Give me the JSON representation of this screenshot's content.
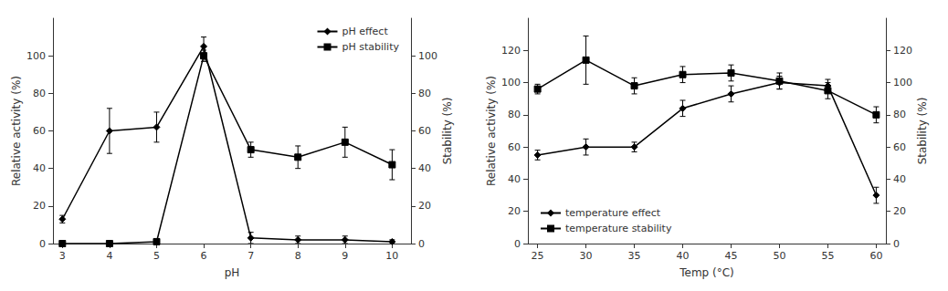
{
  "chart_data": [
    {
      "type": "line",
      "x": [
        3,
        4,
        5,
        6,
        7,
        8,
        9,
        10
      ],
      "xlabel": "pH",
      "ylabel": "Relative activity (%)",
      "y2label": "Stability (%)",
      "xlim": [
        2.8,
        10.4
      ],
      "xticks": [
        3,
        4,
        5,
        6,
        7,
        8,
        9,
        10
      ],
      "ylim": [
        0,
        120
      ],
      "yticks": [
        0,
        20,
        40,
        60,
        80,
        100
      ],
      "y2lim": [
        0,
        120
      ],
      "y2ticks": [
        0,
        20,
        40,
        60,
        80,
        100
      ],
      "grid": false,
      "legend": "upper right",
      "series": [
        {
          "name": "pH effect",
          "color": "#000000",
          "marker": "diamond",
          "values": [
            13,
            60,
            62,
            105,
            3,
            2,
            2,
            1
          ],
          "errors": [
            2,
            12,
            8,
            5,
            3,
            2,
            2,
            1
          ]
        },
        {
          "name": "pH stability",
          "color": "#000000",
          "marker": "square",
          "axis": "y2",
          "values": [
            0,
            0,
            1,
            100,
            50,
            46,
            54,
            42
          ],
          "errors": [
            0,
            0,
            1,
            3,
            4,
            6,
            8,
            8
          ]
        }
      ]
    },
    {
      "type": "line",
      "x": [
        25,
        30,
        35,
        40,
        45,
        50,
        55,
        60
      ],
      "xlabel": "Temp (°C)",
      "ylabel": "Relative activity (%)",
      "y2label": "Stability (%)",
      "xlim": [
        24,
        61
      ],
      "xticks": [
        25,
        30,
        35,
        40,
        45,
        50,
        55,
        60
      ],
      "ylim": [
        0,
        140
      ],
      "yticks": [
        0,
        20,
        40,
        60,
        80,
        100,
        120
      ],
      "y2lim": [
        0,
        140
      ],
      "y2ticks": [
        0,
        20,
        40,
        60,
        80,
        100,
        120
      ],
      "grid": false,
      "legend": "lower left",
      "series": [
        {
          "name": "temperature effect",
          "color": "#000000",
          "marker": "diamond",
          "values": [
            55,
            60,
            60,
            84,
            93,
            100,
            98,
            30
          ],
          "errors": [
            3,
            5,
            3,
            5,
            5,
            4,
            4,
            5
          ]
        },
        {
          "name": "temperature stability",
          "color": "#000000",
          "marker": "square",
          "axis": "y2",
          "values": [
            96,
            114,
            98,
            105,
            106,
            101,
            95,
            80
          ],
          "errors": [
            3,
            15,
            5,
            5,
            5,
            5,
            5,
            5
          ]
        }
      ]
    }
  ]
}
